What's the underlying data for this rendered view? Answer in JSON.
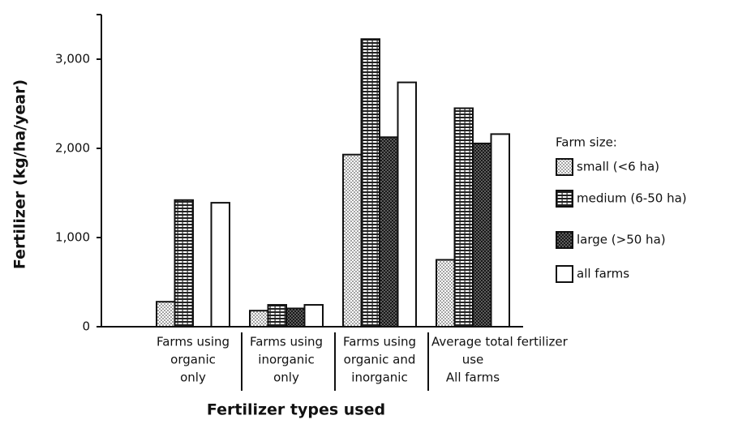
{
  "chart_data": {
    "type": "bar",
    "y_label": "Fertilizer (kg/ha/year)",
    "x_label": "Fertilizer types used",
    "legend_title": "Farm size:",
    "legend": "right",
    "categories": [
      [
        "Farms using",
        "organic",
        "only"
      ],
      [
        "Farms using",
        "inorganic",
        "only"
      ],
      [
        "Farms using",
        "organic and",
        "inorganic"
      ],
      [
        "Average total fertilizer",
        "use",
        "All farms"
      ]
    ],
    "series": [
      {
        "name": "small (<6 ha)",
        "pattern": "dots",
        "values": [
          280,
          180,
          1930,
          750
        ]
      },
      {
        "name": "medium (6-50 ha)",
        "pattern": "stripes",
        "values": [
          1420,
          245,
          3225,
          2450
        ]
      },
      {
        "name": "large (>50 ha)",
        "pattern": "crosshatch",
        "values": [
          null,
          205,
          2125,
          2055
        ]
      },
      {
        "name": "all farms",
        "pattern": "plain",
        "values": [
          1390,
          245,
          2740,
          2160
        ]
      }
    ],
    "ylim": [
      0,
      3500
    ],
    "yticks": [
      0,
      {
        "value": 1000,
        "label": "1,000"
      },
      {
        "value": 2000,
        "label": "2,000"
      },
      {
        "value": 3000,
        "label": "3,000"
      }
    ]
  }
}
